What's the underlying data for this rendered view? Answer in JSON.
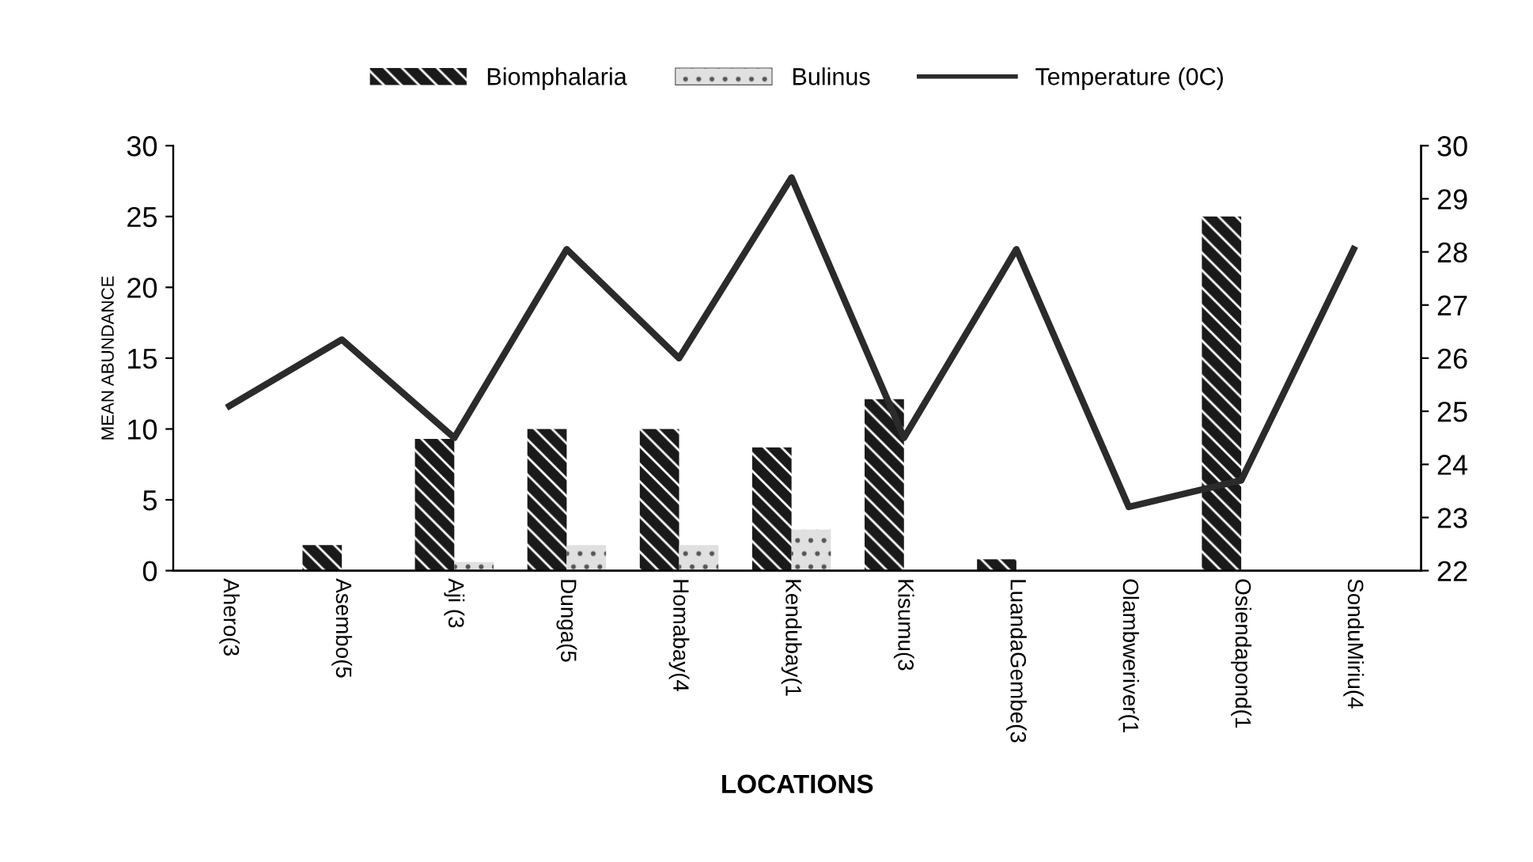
{
  "chart_data": {
    "type": "bar",
    "xlabel": "LOCATIONS",
    "ylabel": "MEAN ABUNDANCE",
    "categories": [
      "Ahero(3",
      "Asembo(5",
      "Aji (3",
      "Dunga(5",
      "Homabay(4",
      "Kendubay(1",
      "Kisumu(3",
      "LuandaGembe(3",
      "Olambweriver(1",
      "Osiendapond(1",
      "SonduMiriu(4"
    ],
    "series": [
      {
        "name": "Biomphalaria",
        "color": "#1a1a1a",
        "values": [
          null,
          1.8,
          9.3,
          10,
          10,
          8.7,
          12.1,
          0.8,
          null,
          25,
          null
        ]
      },
      {
        "name": "Bulinus",
        "color": "#e0e0e0",
        "values": [
          null,
          null,
          0.6,
          1.8,
          1.8,
          2.9,
          null,
          null,
          null,
          null,
          null
        ]
      },
      {
        "name": "Temperature (0C)",
        "type": "line",
        "axis": "y2",
        "color": "#2b2b2b",
        "values": [
          25.1,
          26.35,
          24.5,
          28.05,
          26.0,
          29.4,
          24.5,
          28.05,
          23.2,
          23.7,
          28.05
        ]
      }
    ],
    "ylim": [
      0,
      30
    ],
    "yticks": [
      0,
      5,
      10,
      15,
      20,
      25,
      30
    ],
    "y2lim": [
      22,
      30
    ],
    "y2ticks": [
      22,
      23,
      24,
      25,
      26,
      27,
      28,
      29,
      30
    ],
    "legend": "top",
    "grid": false,
    "marker": "none",
    "line_style": "solid"
  }
}
